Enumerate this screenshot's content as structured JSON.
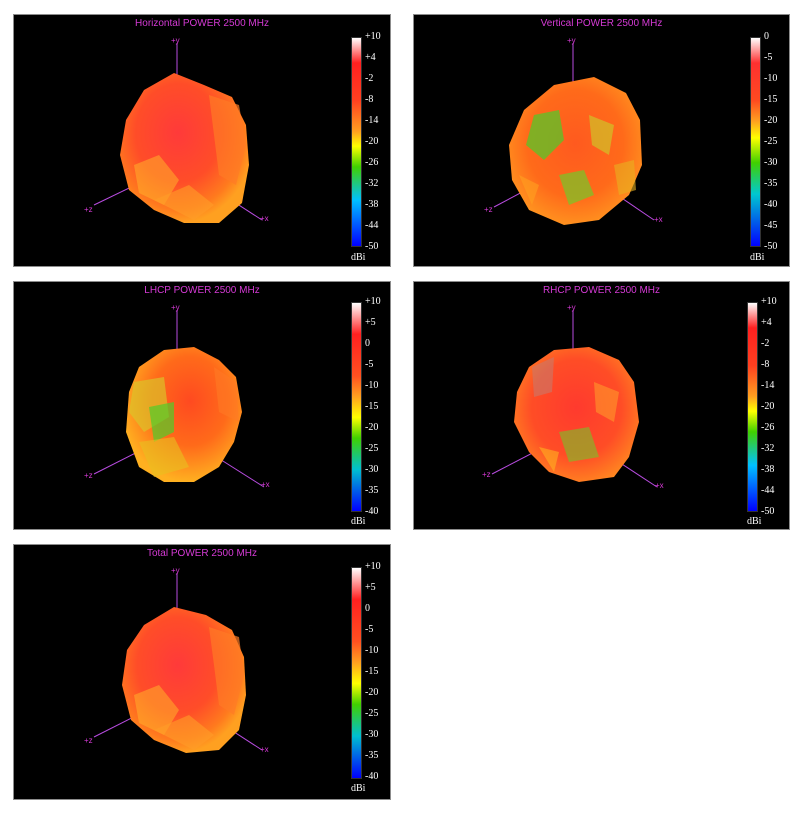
{
  "chart_data": [
    {
      "type": "3d-radiation-pattern",
      "title": "Horizontal POWER 2500  MHz",
      "frequency_mhz": 2500,
      "colorbar": {
        "unit": "dBi",
        "ticks": [
          "+10",
          "+4",
          "-2",
          "-8",
          "-14",
          "-20",
          "-26",
          "-32",
          "-38",
          "-44",
          "-50"
        ],
        "range": [
          -50,
          10
        ]
      },
      "axes": [
        "+y",
        "+z",
        "+x"
      ],
      "dominant_color": "#ff4a2a"
    },
    {
      "type": "3d-radiation-pattern",
      "title": "Vertical POWER 2500  MHz",
      "frequency_mhz": 2500,
      "colorbar": {
        "unit": "dBi",
        "ticks": [
          "0",
          "-5",
          "-10",
          "-15",
          "-20",
          "-25",
          "-30",
          "-35",
          "-40",
          "-45",
          "-50"
        ],
        "range": [
          -50,
          0
        ]
      },
      "axes": [
        "+y",
        "+z",
        "+x"
      ],
      "dominant_color": "#ff5a20"
    },
    {
      "type": "3d-radiation-pattern",
      "title": "LHCP POWER 2500  MHz",
      "frequency_mhz": 2500,
      "colorbar": {
        "unit": "dBi",
        "ticks": [
          "+10",
          "+5",
          "0",
          "-5",
          "-10",
          "-15",
          "-20",
          "-25",
          "-30",
          "-35",
          "-40"
        ],
        "range": [
          -40,
          10
        ]
      },
      "axes": [
        "+y",
        "+z",
        "+x"
      ],
      "dominant_color": "#ff6a1a"
    },
    {
      "type": "3d-radiation-pattern",
      "title": "RHCP POWER 2500  MHz",
      "frequency_mhz": 2500,
      "colorbar": {
        "unit": "dBi",
        "ticks": [
          "+10",
          "+4",
          "-2",
          "-8",
          "-14",
          "-20",
          "-26",
          "-32",
          "-38",
          "-44",
          "-50"
        ],
        "range": [
          -50,
          10
        ]
      },
      "axes": [
        "+y",
        "+z",
        "+x"
      ],
      "dominant_color": "#ff4a2a"
    },
    {
      "type": "3d-radiation-pattern",
      "title": "Total POWER 2500  MHz",
      "frequency_mhz": 2500,
      "colorbar": {
        "unit": "dBi",
        "ticks": [
          "+10",
          "+5",
          "0",
          "-5",
          "-10",
          "-15",
          "-20",
          "-25",
          "-30",
          "-35",
          "-40"
        ],
        "range": [
          -40,
          10
        ]
      },
      "axes": [
        "+y",
        "+z",
        "+x"
      ],
      "dominant_color": "#ff4a2a"
    }
  ],
  "colors": {
    "panel_background": "#000000",
    "title_color": "#d63ad6",
    "axis_color": "#b84ce0",
    "colorbar_gradient": [
      "#ffffff",
      "#ff0000",
      "#ffa500",
      "#ffff00",
      "#00d000",
      "#00c0ff",
      "#0000ff"
    ]
  }
}
